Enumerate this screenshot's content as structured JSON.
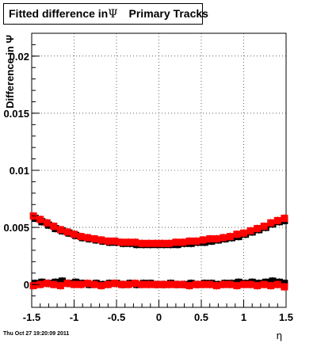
{
  "chart_data": {
    "type": "scatter",
    "title": {
      "prefix": "Fitted difference in",
      "symbol": "Ψ",
      "suffix": "Primary Tracks"
    },
    "xlabel": "η",
    "ylabel": "Difference in Ψ",
    "xlim": [
      -1.5,
      1.5
    ],
    "ylim": [
      -0.002,
      0.022
    ],
    "xticks": [
      "-1.5",
      "-1",
      "-0.5",
      "0",
      "0.5",
      "1",
      "1.5"
    ],
    "yticks": [
      "0",
      "0.005",
      "0.01",
      "0.015",
      "0.02"
    ],
    "grid": true,
    "legend": "none",
    "series": [
      {
        "color": "#000000",
        "marker": "square",
        "x": [
          -1.46,
          -1.38,
          -1.3,
          -1.22,
          -1.14,
          -1.06,
          -0.98,
          -0.9,
          -0.82,
          -0.74,
          -0.66,
          -0.58,
          -0.5,
          -0.42,
          -0.34,
          -0.26,
          -0.18,
          -0.1,
          -0.02,
          0.06,
          0.14,
          0.22,
          0.3,
          0.38,
          0.46,
          0.54,
          0.62,
          0.7,
          0.78,
          0.86,
          0.94,
          1.02,
          1.1,
          1.18,
          1.26,
          1.34,
          1.42,
          1.48
        ],
        "y": [
          0.0058,
          0.0055,
          0.0052,
          0.0049,
          0.0047,
          0.0045,
          0.0043,
          0.0041,
          0.004,
          0.0039,
          0.0038,
          0.0037,
          0.0037,
          0.0036,
          0.0036,
          0.0035,
          0.0035,
          0.0035,
          0.0035,
          0.0035,
          0.0035,
          0.0035,
          0.0036,
          0.0036,
          0.0037,
          0.0037,
          0.0038,
          0.0039,
          0.004,
          0.0041,
          0.0042,
          0.0044,
          0.0046,
          0.0048,
          0.005,
          0.0053,
          0.0055,
          0.0056
        ]
      },
      {
        "color": "#ff0000",
        "marker": "square",
        "x": [
          -1.48,
          -1.4,
          -1.32,
          -1.24,
          -1.16,
          -1.08,
          -1.0,
          -0.92,
          -0.84,
          -0.76,
          -0.68,
          -0.6,
          -0.52,
          -0.44,
          -0.36,
          -0.28,
          -0.2,
          -0.12,
          -0.04,
          0.04,
          0.12,
          0.2,
          0.28,
          0.36,
          0.44,
          0.52,
          0.6,
          0.68,
          0.76,
          0.84,
          0.92,
          1.0,
          1.08,
          1.16,
          1.24,
          1.32,
          1.4,
          1.48
        ],
        "y": [
          0.006,
          0.0057,
          0.0054,
          0.0051,
          0.0048,
          0.0046,
          0.0044,
          0.0042,
          0.0041,
          0.004,
          0.0039,
          0.0038,
          0.0038,
          0.0037,
          0.0037,
          0.0037,
          0.0036,
          0.0036,
          0.0036,
          0.0036,
          0.0036,
          0.0037,
          0.0037,
          0.0038,
          0.0038,
          0.0039,
          0.004,
          0.004,
          0.0041,
          0.0042,
          0.0044,
          0.0045,
          0.0047,
          0.0049,
          0.0051,
          0.0054,
          0.0056,
          0.0058
        ]
      },
      {
        "color": "#000000",
        "marker": "square",
        "x": [
          -1.46,
          -1.38,
          -1.3,
          -1.22,
          -1.14,
          -1.06,
          -0.98,
          -0.9,
          -0.82,
          -0.74,
          -0.66,
          -0.58,
          -0.5,
          -0.42,
          -0.34,
          -0.26,
          -0.18,
          -0.1,
          -0.02,
          0.06,
          0.14,
          0.22,
          0.3,
          0.38,
          0.46,
          0.54,
          0.62,
          0.7,
          0.78,
          0.86,
          0.94,
          1.02,
          1.1,
          1.18,
          1.26,
          1.34,
          1.42,
          1.48
        ],
        "y": [
          0.0001,
          0.0002,
          0.0001,
          0.0002,
          0.0003,
          0.0001,
          0.0002,
          0.0001,
          0.0,
          0.0001,
          0.0,
          0.0001,
          0.0001,
          0.0,
          0.0001,
          0.0,
          0.0001,
          0.0001,
          0.0,
          0.0,
          0.0001,
          0.0,
          0.0,
          0.0001,
          0.0,
          0.0001,
          0.0001,
          0.0,
          0.0001,
          0.0001,
          0.0002,
          0.0001,
          0.0002,
          0.0001,
          0.0002,
          0.0003,
          0.0002,
          0.0001
        ]
      },
      {
        "color": "#ff0000",
        "marker": "square",
        "x": [
          -1.48,
          -1.4,
          -1.32,
          -1.24,
          -1.16,
          -1.08,
          -1.0,
          -0.92,
          -0.84,
          -0.76,
          -0.68,
          -0.6,
          -0.52,
          -0.44,
          -0.36,
          -0.28,
          -0.2,
          -0.12,
          -0.04,
          0.04,
          0.12,
          0.2,
          0.28,
          0.36,
          0.44,
          0.52,
          0.6,
          0.68,
          0.76,
          0.84,
          0.92,
          1.0,
          1.08,
          1.16,
          1.24,
          1.32,
          1.4,
          1.48
        ],
        "y": [
          -0.0001,
          0.0,
          0.0001,
          0.0,
          -0.0001,
          0.0001,
          0.0,
          0.0,
          0.0001,
          0.0,
          -0.0001,
          0.0,
          0.0001,
          0.0,
          0.0,
          0.0001,
          0.0,
          0.0,
          0.0,
          0.0,
          0.0,
          0.0,
          0.0,
          -0.0001,
          0.0,
          0.0,
          0.0,
          -0.0001,
          0.0,
          0.0,
          -0.0001,
          0.0,
          0.0,
          -0.0001,
          0.0,
          -0.0001,
          0.0,
          -0.0002
        ]
      }
    ]
  },
  "footer": {
    "timestamp": "Thu Oct 27 19:20:09 2011"
  }
}
